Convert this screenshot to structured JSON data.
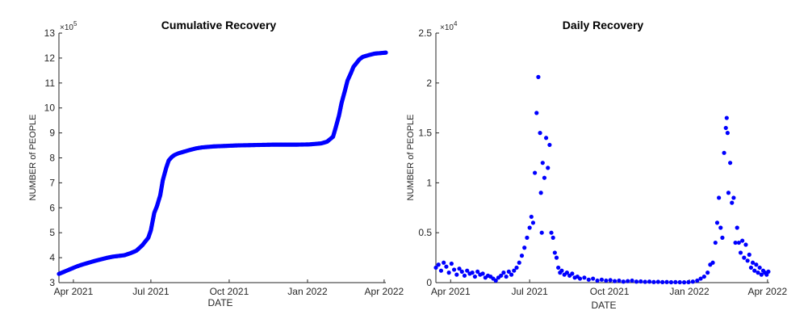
{
  "chart_data": [
    {
      "type": "scatter",
      "title": "Cumulative Recovery",
      "xlabel": "DATE",
      "ylabel": "NUMBER of PEOPLE",
      "y_multiplier_label": "×10",
      "y_multiplier_exp": "5",
      "xlim": [
        "2021-03-15",
        "2022-04-03"
      ],
      "ylim": [
        3,
        13
      ],
      "y_scale_factor": 100000,
      "xticks": [
        {
          "date": "2021-04-01",
          "label": "Apr 2021"
        },
        {
          "date": "2021-07-01",
          "label": "Jul 2021"
        },
        {
          "date": "2021-10-01",
          "label": "Oct 2021"
        },
        {
          "date": "2022-01-01",
          "label": "Jan 2022"
        },
        {
          "date": "2022-04-01",
          "label": "Apr 2022"
        }
      ],
      "yticks": [
        3,
        4,
        5,
        6,
        7,
        8,
        9,
        10,
        11,
        12,
        13
      ],
      "ytick_labels": [
        "3",
        "4",
        "5",
        "6",
        "7",
        "8",
        "9",
        "10",
        "11",
        "12",
        "13"
      ],
      "marker_color": "#0000ff",
      "grid": false,
      "series": [
        {
          "x": [
            "2021-03-15",
            "2021-03-22",
            "2021-03-29",
            "2021-04-05",
            "2021-04-12",
            "2021-04-19",
            "2021-04-26",
            "2021-05-03",
            "2021-05-10",
            "2021-05-17",
            "2021-05-24",
            "2021-05-31",
            "2021-06-07",
            "2021-06-14",
            "2021-06-21",
            "2021-06-28",
            "2021-07-01",
            "2021-07-05",
            "2021-07-08",
            "2021-07-12",
            "2021-07-15",
            "2021-07-19",
            "2021-07-22",
            "2021-07-26",
            "2021-07-29",
            "2021-08-02",
            "2021-08-09",
            "2021-08-16",
            "2021-08-23",
            "2021-08-30",
            "2021-09-13",
            "2021-09-27",
            "2021-10-11",
            "2021-10-25",
            "2021-11-08",
            "2021-11-22",
            "2021-12-06",
            "2021-12-20",
            "2022-01-03",
            "2022-01-17",
            "2022-01-24",
            "2022-01-31",
            "2022-02-03",
            "2022-02-07",
            "2022-02-10",
            "2022-02-14",
            "2022-02-17",
            "2022-02-21",
            "2022-02-24",
            "2022-02-28",
            "2022-03-03",
            "2022-03-07",
            "2022-03-14",
            "2022-03-21",
            "2022-03-28",
            "2022-04-03"
          ],
          "y": [
            3.35,
            3.45,
            3.55,
            3.65,
            3.73,
            3.8,
            3.87,
            3.93,
            3.99,
            4.04,
            4.07,
            4.1,
            4.18,
            4.28,
            4.5,
            4.8,
            5.1,
            5.8,
            6.05,
            6.5,
            7.1,
            7.6,
            7.9,
            8.05,
            8.12,
            8.18,
            8.25,
            8.32,
            8.38,
            8.42,
            8.46,
            8.48,
            8.5,
            8.51,
            8.52,
            8.53,
            8.53,
            8.53,
            8.54,
            8.58,
            8.65,
            8.85,
            9.2,
            9.7,
            10.2,
            10.7,
            11.1,
            11.4,
            11.65,
            11.82,
            11.95,
            12.05,
            12.12,
            12.18,
            12.2,
            12.22
          ]
        }
      ]
    },
    {
      "type": "scatter",
      "title": "Daily Recovery",
      "xlabel": "DATE",
      "ylabel": "NUMBER of PEOPLE",
      "y_multiplier_label": "×10",
      "y_multiplier_exp": "4",
      "xlim": [
        "2021-03-15",
        "2022-04-03"
      ],
      "ylim": [
        0,
        2.5
      ],
      "y_scale_factor": 10000,
      "xticks": [
        {
          "date": "2021-04-01",
          "label": "Apr 2021"
        },
        {
          "date": "2021-07-01",
          "label": "Jul 2021"
        },
        {
          "date": "2021-10-01",
          "label": "Oct 2021"
        },
        {
          "date": "2022-01-01",
          "label": "Jan 2022"
        },
        {
          "date": "2022-04-01",
          "label": "Apr 2022"
        }
      ],
      "yticks": [
        0,
        0.5,
        1,
        1.5,
        2,
        2.5
      ],
      "ytick_labels": [
        "0",
        "0.5",
        "1",
        "1.5",
        "2",
        "2.5"
      ],
      "marker_color": "#0000ff",
      "grid": false,
      "series": [
        {
          "x": [
            "2021-03-15",
            "2021-03-18",
            "2021-03-21",
            "2021-03-24",
            "2021-03-27",
            "2021-03-30",
            "2021-04-02",
            "2021-04-05",
            "2021-04-08",
            "2021-04-11",
            "2021-04-14",
            "2021-04-17",
            "2021-04-20",
            "2021-04-23",
            "2021-04-26",
            "2021-04-29",
            "2021-05-02",
            "2021-05-05",
            "2021-05-08",
            "2021-05-11",
            "2021-05-14",
            "2021-05-17",
            "2021-05-20",
            "2021-05-23",
            "2021-05-26",
            "2021-05-29",
            "2021-06-01",
            "2021-06-04",
            "2021-06-07",
            "2021-06-10",
            "2021-06-13",
            "2021-06-16",
            "2021-06-19",
            "2021-06-22",
            "2021-06-25",
            "2021-06-28",
            "2021-07-01",
            "2021-07-03",
            "2021-07-05",
            "2021-07-07",
            "2021-07-09",
            "2021-07-11",
            "2021-07-13",
            "2021-07-14",
            "2021-07-15",
            "2021-07-16",
            "2021-07-18",
            "2021-07-20",
            "2021-07-22",
            "2021-07-24",
            "2021-07-26",
            "2021-07-28",
            "2021-07-30",
            "2021-08-01",
            "2021-08-03",
            "2021-08-05",
            "2021-08-07",
            "2021-08-10",
            "2021-08-13",
            "2021-08-16",
            "2021-08-19",
            "2021-08-22",
            "2021-08-25",
            "2021-08-28",
            "2021-09-02",
            "2021-09-07",
            "2021-09-12",
            "2021-09-17",
            "2021-09-22",
            "2021-09-27",
            "2021-10-02",
            "2021-10-07",
            "2021-10-12",
            "2021-10-17",
            "2021-10-22",
            "2021-10-27",
            "2021-11-01",
            "2021-11-06",
            "2021-11-11",
            "2021-11-16",
            "2021-11-21",
            "2021-11-26",
            "2021-12-01",
            "2021-12-06",
            "2021-12-11",
            "2021-12-16",
            "2021-12-21",
            "2021-12-26",
            "2021-12-31",
            "2022-01-05",
            "2022-01-10",
            "2022-01-14",
            "2022-01-18",
            "2022-01-22",
            "2022-01-25",
            "2022-01-28",
            "2022-01-31",
            "2022-02-02",
            "2022-02-04",
            "2022-02-06",
            "2022-02-08",
            "2022-02-10",
            "2022-02-12",
            "2022-02-13",
            "2022-02-14",
            "2022-02-15",
            "2022-02-17",
            "2022-02-19",
            "2022-02-21",
            "2022-02-23",
            "2022-02-25",
            "2022-02-27",
            "2022-03-01",
            "2022-03-03",
            "2022-03-05",
            "2022-03-07",
            "2022-03-09",
            "2022-03-11",
            "2022-03-13",
            "2022-03-15",
            "2022-03-17",
            "2022-03-19",
            "2022-03-21",
            "2022-03-23",
            "2022-03-25",
            "2022-03-27",
            "2022-03-29",
            "2022-03-31",
            "2022-04-02"
          ],
          "y": [
            0.15,
            0.18,
            0.12,
            0.2,
            0.16,
            0.1,
            0.19,
            0.13,
            0.08,
            0.14,
            0.11,
            0.07,
            0.12,
            0.09,
            0.1,
            0.06,
            0.11,
            0.08,
            0.09,
            0.05,
            0.07,
            0.06,
            0.04,
            0.02,
            0.05,
            0.07,
            0.1,
            0.06,
            0.11,
            0.08,
            0.12,
            0.15,
            0.2,
            0.27,
            0.35,
            0.45,
            0.55,
            0.66,
            0.6,
            1.1,
            1.7,
            2.06,
            1.5,
            0.9,
            0.5,
            1.2,
            1.05,
            1.45,
            1.15,
            1.38,
            0.5,
            0.45,
            0.3,
            0.25,
            0.15,
            0.1,
            0.12,
            0.08,
            0.1,
            0.07,
            0.09,
            0.05,
            0.06,
            0.04,
            0.05,
            0.03,
            0.04,
            0.02,
            0.03,
            0.02,
            0.025,
            0.015,
            0.02,
            0.01,
            0.015,
            0.02,
            0.01,
            0.012,
            0.008,
            0.01,
            0.006,
            0.008,
            0.005,
            0.006,
            0.004,
            0.005,
            0.004,
            0.003,
            0.005,
            0.01,
            0.02,
            0.04,
            0.06,
            0.1,
            0.18,
            0.2,
            0.4,
            0.6,
            0.85,
            0.55,
            0.45,
            1.3,
            1.55,
            1.65,
            1.5,
            0.9,
            1.2,
            0.8,
            0.85,
            0.4,
            0.55,
            0.4,
            0.3,
            0.42,
            0.25,
            0.38,
            0.22,
            0.28,
            0.15,
            0.2,
            0.12,
            0.18,
            0.1,
            0.15,
            0.08,
            0.12,
            0.1,
            0.08,
            0.11
          ]
        }
      ]
    }
  ]
}
